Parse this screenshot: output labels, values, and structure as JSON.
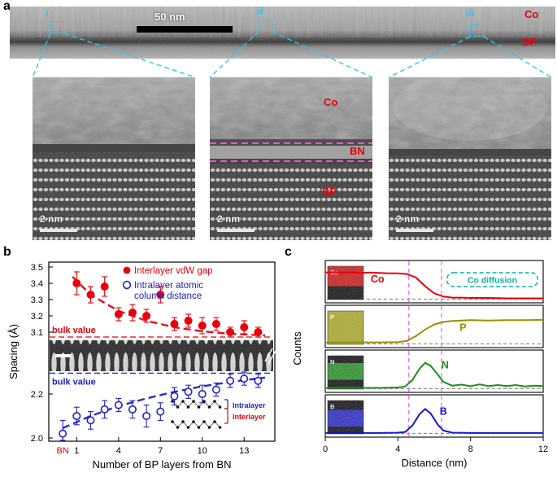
{
  "panel_a": {
    "label": "a",
    "co_label": "Co",
    "bp_label": "BP",
    "scale_bar": "50 nm",
    "regions": [
      {
        "id": "i"
      },
      {
        "id": "ii"
      },
      {
        "id": "iii"
      }
    ],
    "zoom_scale_bar": "2 nm",
    "zoom2_labels": {
      "co": "Co",
      "bn": "BN",
      "bp": "BP"
    }
  },
  "panel_b": {
    "label": "b"
  },
  "panel_c": {
    "label": "c"
  },
  "colors": {
    "highlight_cyan": "#35c4f0",
    "bn_magenta": "#ff4fd8",
    "label_red": "#e8000b",
    "intralayer_blue": "#2121cc",
    "diffusion_teal": "#00b2a9"
  },
  "chart_data": [
    {
      "type": "scatter",
      "xlabel": "Number of BP layers from BN",
      "ylabel": "Spacing (Å)",
      "x_ticks": [
        {
          "v": 0,
          "label": "BN",
          "color": "#e8000b"
        },
        {
          "v": 1,
          "label": "1"
        },
        {
          "v": 4,
          "label": "4"
        },
        {
          "v": 7,
          "label": "7"
        },
        {
          "v": 10,
          "label": "10"
        },
        {
          "v": 13,
          "label": "13"
        }
      ],
      "y_ticks_top": [
        "3.5",
        "3.4",
        "3.3",
        "3.2",
        "3.1"
      ],
      "y_ticks_bottom": [
        "2.2",
        "2.0"
      ],
      "ylim_top": [
        3.05,
        3.5
      ],
      "ylim_bottom": [
        1.95,
        2.3
      ],
      "axis_break": true,
      "series": [
        {
          "name": "Interlayer vdW gap",
          "color": "#e8000b",
          "marker": "filled-circle",
          "points": [
            [
              1,
              3.4,
              0.07
            ],
            [
              2,
              3.33,
              0.05
            ],
            [
              3,
              3.38,
              0.06
            ],
            [
              4,
              3.21,
              0.04
            ],
            [
              5,
              3.22,
              0.05
            ],
            [
              6,
              3.2,
              0.04
            ],
            [
              7,
              3.33,
              0.05
            ],
            [
              8,
              3.15,
              0.04
            ],
            [
              9,
              3.17,
              0.04
            ],
            [
              10,
              3.14,
              0.05
            ],
            [
              11,
              3.15,
              0.04
            ],
            [
              12,
              3.1,
              0.03
            ],
            [
              13,
              3.13,
              0.04
            ],
            [
              14,
              3.1,
              0.03
            ]
          ],
          "trend": [
            [
              0.7,
              3.44
            ],
            [
              2,
              3.33
            ],
            [
              4,
              3.23
            ],
            [
              6,
              3.17
            ],
            [
              8,
              3.13
            ],
            [
              10,
              3.105
            ],
            [
              12,
              3.09
            ],
            [
              14.5,
              3.08
            ]
          ]
        },
        {
          "name": "Intralayer atomic column distance",
          "legend_lines": [
            "Intralayer atomic",
            "column distance"
          ],
          "color": "#2121cc",
          "marker": "open-circle",
          "points": [
            [
              0,
              2.02,
              0.06
            ],
            [
              1,
              2.1,
              0.04
            ],
            [
              2,
              2.08,
              0.04
            ],
            [
              3,
              2.13,
              0.04
            ],
            [
              4,
              2.15,
              0.03
            ],
            [
              5,
              2.13,
              0.04
            ],
            [
              6,
              2.1,
              0.05
            ],
            [
              7,
              2.12,
              0.04
            ],
            [
              8,
              2.19,
              0.04
            ],
            [
              9,
              2.21,
              0.03
            ],
            [
              10,
              2.2,
              0.04
            ],
            [
              11,
              2.22,
              0.03
            ],
            [
              12,
              2.26,
              0.03
            ],
            [
              13,
              2.27,
              0.03
            ],
            [
              14,
              2.26,
              0.03
            ]
          ],
          "trend": [
            [
              0,
              2.045
            ],
            [
              2,
              2.1
            ],
            [
              4,
              2.145
            ],
            [
              6,
              2.18
            ],
            [
              8,
              2.21
            ],
            [
              10,
              2.235
            ],
            [
              12,
              2.255
            ],
            [
              14.5,
              2.275
            ]
          ]
        }
      ],
      "bulk_lines": [
        {
          "label": "bulk value",
          "value": 3.07,
          "color": "#e8000b",
          "label_below": false
        },
        {
          "label": "bulk value",
          "value": 2.295,
          "color": "#2121cc",
          "label_below": true
        }
      ],
      "inset_diagram": {
        "intralayer_label": "Intralayer",
        "intralayer_color": "#2121cc",
        "interlayer_label": "Interlayer",
        "interlayer_color": "#e8000b"
      }
    },
    {
      "type": "line",
      "xlabel": "Distance (nm)",
      "ylabel": "Counts",
      "xlim": [
        0,
        12
      ],
      "x_ticks": [
        "0",
        "4",
        "8",
        "12"
      ],
      "guide_lines_x": [
        4.6,
        6.4
      ],
      "guide_color": "#ff5fd7",
      "baseline_y": 0.06,
      "annotation": {
        "text": "Co diffusion",
        "color": "#00b2a9",
        "x_range": [
          6.7,
          11.7
        ],
        "panel_index": 0
      },
      "panels": [
        {
          "element": "Co",
          "color": "#e8000b",
          "label_pos": [
            2.5,
            0.52
          ],
          "points": [
            [
              0,
              0.8
            ],
            [
              0.5,
              0.81
            ],
            [
              1,
              0.8
            ],
            [
              1.5,
              0.81
            ],
            [
              2,
              0.79
            ],
            [
              2.5,
              0.8
            ],
            [
              3,
              0.79
            ],
            [
              3.5,
              0.78
            ],
            [
              4,
              0.78
            ],
            [
              4.5,
              0.76
            ],
            [
              5,
              0.66
            ],
            [
              5.5,
              0.42
            ],
            [
              6,
              0.22
            ],
            [
              6.5,
              0.13
            ],
            [
              7,
              0.1
            ],
            [
              7.5,
              0.1
            ],
            [
              8,
              0.09
            ],
            [
              9,
              0.09
            ],
            [
              10,
              0.08
            ],
            [
              11,
              0.08
            ],
            [
              12,
              0.08
            ]
          ]
        },
        {
          "element": "P",
          "color": "#949400",
          "label_pos": [
            7.4,
            0.42
          ],
          "points": [
            [
              0,
              0.1
            ],
            [
              1,
              0.1
            ],
            [
              2,
              0.1
            ],
            [
              3,
              0.1
            ],
            [
              4,
              0.11
            ],
            [
              4.5,
              0.14
            ],
            [
              5,
              0.28
            ],
            [
              5.5,
              0.46
            ],
            [
              6,
              0.6
            ],
            [
              6.5,
              0.67
            ],
            [
              7,
              0.7
            ],
            [
              7.5,
              0.71
            ],
            [
              8,
              0.72
            ],
            [
              9,
              0.71
            ],
            [
              10,
              0.72
            ],
            [
              11,
              0.72
            ],
            [
              12,
              0.73
            ]
          ]
        },
        {
          "element": "N",
          "color": "#1e8c1e",
          "label_pos": [
            6.4,
            0.62
          ],
          "points": [
            [
              0,
              0.08
            ],
            [
              1,
              0.08
            ],
            [
              2,
              0.08
            ],
            [
              3,
              0.08
            ],
            [
              4,
              0.09
            ],
            [
              4.4,
              0.12
            ],
            [
              4.8,
              0.3
            ],
            [
              5.2,
              0.62
            ],
            [
              5.5,
              0.78
            ],
            [
              5.8,
              0.7
            ],
            [
              6.2,
              0.45
            ],
            [
              6.5,
              0.25
            ],
            [
              7,
              0.14
            ],
            [
              7.5,
              0.17
            ],
            [
              8,
              0.13
            ],
            [
              8.5,
              0.18
            ],
            [
              9,
              0.13
            ],
            [
              9.5,
              0.16
            ],
            [
              10,
              0.13
            ],
            [
              10.5,
              0.16
            ],
            [
              11,
              0.12
            ],
            [
              11.5,
              0.14
            ],
            [
              12,
              0.13
            ]
          ]
        },
        {
          "element": "B",
          "color": "#1515d0",
          "label_pos": [
            6.3,
            0.58
          ],
          "points": [
            [
              0,
              0.07
            ],
            [
              1,
              0.07
            ],
            [
              2,
              0.07
            ],
            [
              3,
              0.07
            ],
            [
              4,
              0.08
            ],
            [
              4.4,
              0.1
            ],
            [
              4.8,
              0.28
            ],
            [
              5.2,
              0.6
            ],
            [
              5.5,
              0.74
            ],
            [
              5.8,
              0.62
            ],
            [
              6.2,
              0.3
            ],
            [
              6.5,
              0.14
            ],
            [
              7,
              0.08
            ],
            [
              8,
              0.07
            ],
            [
              9,
              0.07
            ],
            [
              10,
              0.07
            ],
            [
              11,
              0.07
            ],
            [
              12,
              0.07
            ]
          ]
        }
      ]
    }
  ]
}
